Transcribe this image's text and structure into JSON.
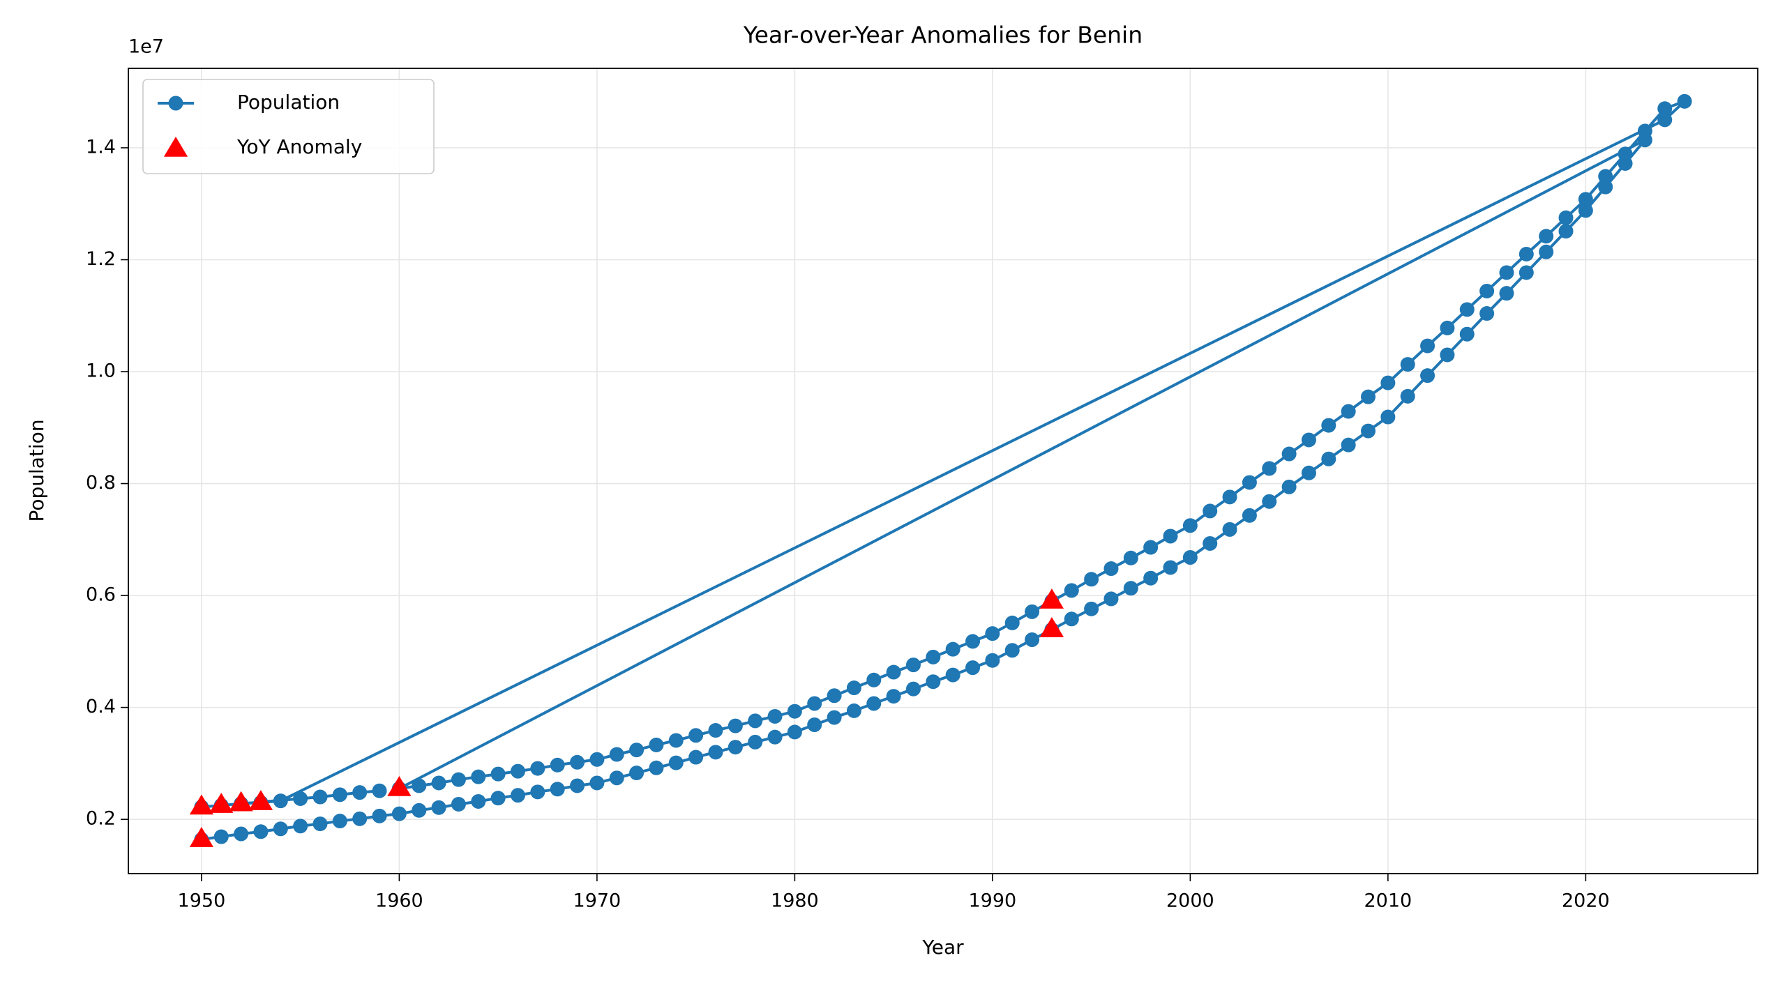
{
  "chart_data": {
    "type": "line",
    "title": "Year-over-Year Anomalies for Benin",
    "x_label": "Year",
    "y_label": "Population",
    "y_offset_label": "1e7",
    "xlim": [
      1946.3,
      2028.7
    ],
    "xticks": [
      1950,
      1960,
      1970,
      1980,
      1990,
      2000,
      2010,
      2020
    ],
    "ylim": [
      0.103,
      1.542
    ],
    "yticks": [
      0.2,
      0.4,
      0.6,
      0.8,
      {
        "value": 1,
        "label": "1.0"
      },
      1.2,
      1.4
    ],
    "grid": true,
    "legend": "upper left",
    "series": [
      {
        "name": "Population",
        "color": "#1f77b4",
        "marker": "circle",
        "x": [
          1950,
          1951,
          1952,
          1953,
          1954,
          1955,
          1956,
          1957,
          1958,
          1959,
          1960,
          1961,
          1962,
          1963,
          1964,
          1965,
          1966,
          1967,
          1968,
          1969,
          1970,
          1971,
          1972,
          1973,
          1974,
          1975,
          1976,
          1977,
          1978,
          1979,
          1980,
          1981,
          1982,
          1983,
          1984,
          1985,
          1986,
          1987,
          1988,
          1989,
          1990,
          1991,
          1992,
          1993,
          1994,
          1995,
          1996,
          1997,
          1998,
          1999,
          2000,
          2001,
          2002,
          2003,
          2004,
          2005,
          2006,
          2007,
          2008,
          2009,
          2010,
          2011,
          2012,
          2013,
          2014,
          2015,
          2016,
          2017,
          2018,
          2019,
          2020,
          2021,
          2022,
          2023,
          1960,
          1961,
          1962,
          1963,
          1964,
          1965,
          1966,
          1967,
          1968,
          1969,
          1970,
          1971,
          1972,
          1973,
          1974,
          1975,
          1976,
          1977,
          1978,
          1979,
          1980,
          1981,
          1982,
          1983,
          1984,
          1985,
          1986,
          1987,
          1988,
          1989,
          1990,
          1991,
          1992,
          1993,
          1994,
          1995,
          1996,
          1997,
          1998,
          1999,
          2000,
          2001,
          2002,
          2003,
          2004,
          2005,
          2006,
          2007,
          2008,
          2009,
          2010,
          2011,
          2012,
          2013,
          2014,
          2015,
          2016,
          2017,
          2018,
          2019,
          2020,
          2021,
          2022,
          2023,
          2024,
          2025,
          2024,
          1954,
          1953,
          1952,
          1951,
          1950,
          1955,
          1956,
          1957,
          1958,
          1959
        ],
        "values": [
          0.164,
          0.169,
          0.174,
          0.178,
          0.183,
          0.188,
          0.192,
          0.197,
          0.201,
          0.206,
          0.21,
          0.216,
          0.221,
          0.227,
          0.232,
          0.238,
          0.243,
          0.249,
          0.254,
          0.26,
          0.265,
          0.274,
          0.283,
          0.292,
          0.301,
          0.311,
          0.32,
          0.329,
          0.338,
          0.347,
          0.356,
          0.369,
          0.382,
          0.394,
          0.407,
          0.42,
          0.433,
          0.446,
          0.458,
          0.471,
          0.484,
          0.502,
          0.521,
          0.539,
          0.558,
          0.576,
          0.594,
          0.613,
          0.631,
          0.65,
          0.668,
          0.693,
          0.718,
          0.743,
          0.768,
          0.794,
          0.819,
          0.844,
          0.869,
          0.894,
          0.919,
          0.956,
          0.993,
          1.03,
          1.067,
          1.104,
          1.14,
          1.177,
          1.214,
          1.251,
          1.288,
          1.33,
          1.372,
          1.414,
          0.255,
          0.26,
          0.265,
          0.271,
          0.276,
          0.281,
          0.286,
          0.291,
          0.297,
          0.302,
          0.307,
          0.316,
          0.324,
          0.333,
          0.341,
          0.35,
          0.359,
          0.367,
          0.376,
          0.384,
          0.393,
          0.407,
          0.421,
          0.435,
          0.449,
          0.463,
          0.476,
          0.49,
          0.504,
          0.518,
          0.532,
          0.551,
          0.571,
          0.59,
          0.609,
          0.629,
          0.648,
          0.667,
          0.686,
          0.706,
          0.725,
          0.751,
          0.776,
          0.802,
          0.827,
          0.853,
          0.878,
          0.904,
          0.929,
          0.955,
          0.98,
          1.013,
          1.046,
          1.078,
          1.111,
          1.144,
          1.177,
          1.21,
          1.242,
          1.275,
          1.308,
          1.349,
          1.389,
          1.43,
          1.47,
          1.483,
          1.45,
          0.233,
          0.23,
          0.228,
          0.225,
          0.222,
          0.237,
          0.24,
          0.244,
          0.248,
          0.251
        ]
      },
      {
        "name": "YoY Anomaly",
        "color": "#ff0000",
        "marker": "triangle",
        "x": [
          1950,
          1950,
          1951,
          1952,
          1953,
          1960,
          1993,
          1993
        ],
        "values": [
          0.164,
          0.222,
          0.225,
          0.228,
          0.23,
          0.255,
          0.59,
          0.539
        ]
      }
    ]
  }
}
